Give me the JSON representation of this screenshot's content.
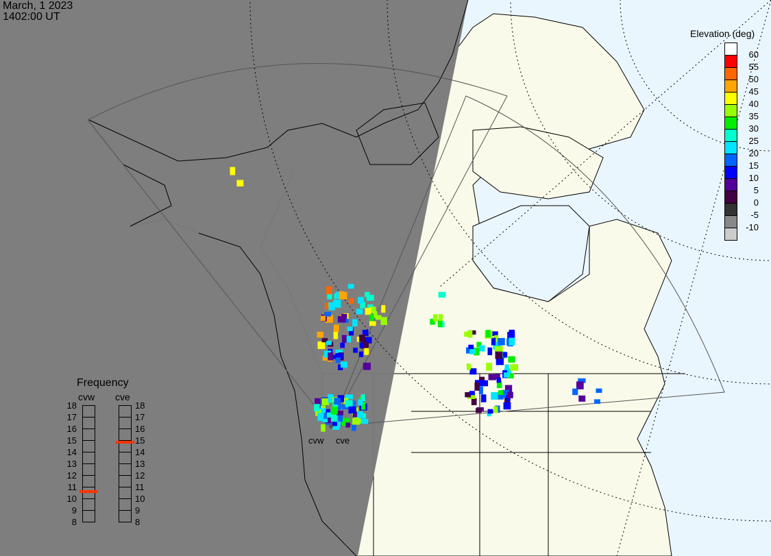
{
  "header": {
    "date": "March, 1 2023",
    "time": "1402:00 UT"
  },
  "elevation_scale": {
    "title": "Elevation (deg)",
    "levels": [
      {
        "label": "60",
        "color": "#ffffff"
      },
      {
        "label": "55",
        "color": "#ff0000"
      },
      {
        "label": "50",
        "color": "#ff6600"
      },
      {
        "label": "45",
        "color": "#ffa500"
      },
      {
        "label": "40",
        "color": "#ffff00"
      },
      {
        "label": "35",
        "color": "#99ff00"
      },
      {
        "label": "30",
        "color": "#00ee00"
      },
      {
        "label": "25",
        "color": "#00ffcc"
      },
      {
        "label": "20",
        "color": "#00e5ff"
      },
      {
        "label": "15",
        "color": "#0066ff"
      },
      {
        "label": "10",
        "color": "#0000ff"
      },
      {
        "label": "5",
        "color": "#550099"
      },
      {
        "label": "0",
        "color": "#440044"
      },
      {
        "label": "-5",
        "color": "#333333"
      },
      {
        "label": "-10",
        "color": "#888888"
      },
      {
        "label": "",
        "color": "#cccccc"
      }
    ]
  },
  "frequency": {
    "title": "Frequency",
    "ticks": [
      "18",
      "17",
      "16",
      "15",
      "14",
      "13",
      "12",
      "11",
      "10",
      "9",
      "8"
    ],
    "radars": [
      {
        "name": "cvw",
        "value_mhz": 10.6
      },
      {
        "name": "cve",
        "value_mhz": 14.8
      }
    ],
    "marker_color": "#ff3300"
  },
  "map": {
    "radar_labels": [
      "cvw",
      "cve"
    ],
    "night_color": "#7a7a7a",
    "land_color": "#fafaea",
    "ocean_color": "#eaf6fd"
  }
}
